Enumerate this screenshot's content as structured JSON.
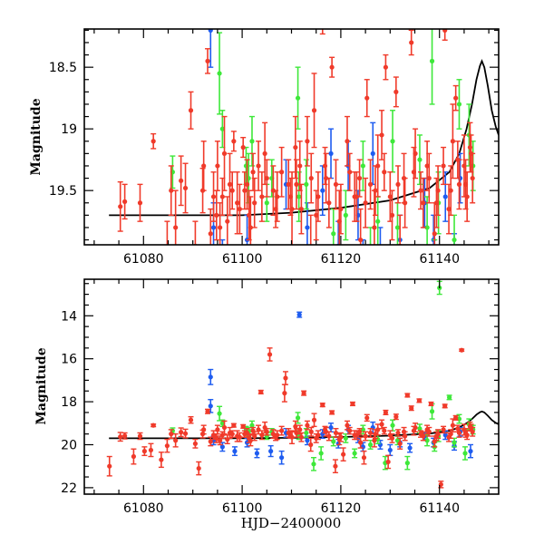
{
  "chart_data": [
    {
      "type": "scatter",
      "panel": "top",
      "title": "",
      "xlabel": "",
      "ylabel": "Magnitude",
      "xlim": [
        61068,
        61152
      ],
      "ylim": [
        18.19,
        19.94
      ],
      "y_inverted": true,
      "grid": false,
      "xticks": [
        61080,
        61100,
        61120,
        61140
      ],
      "xtick_labels": [
        "61080",
        "61100",
        "61120",
        "61140"
      ],
      "xminor_step": 5,
      "yticks": [
        18.5,
        19,
        19.5
      ],
      "ytick_labels": [
        "18.5",
        "19",
        "19.5"
      ],
      "yminor_step": 0.1
    },
    {
      "type": "scatter",
      "panel": "bottom",
      "title": "",
      "xlabel": "HJD−2400000",
      "ylabel": "Magnitude",
      "xlim": [
        61068,
        61152
      ],
      "ylim": [
        12.3,
        22.3
      ],
      "y_inverted": true,
      "grid": false,
      "xticks": [
        61080,
        61100,
        61120,
        61140
      ],
      "xtick_labels": [
        "61080",
        "61100",
        "61120",
        "61140"
      ],
      "xminor_step": 5,
      "yticks": [
        14,
        16,
        18,
        20,
        22
      ],
      "ytick_labels": [
        "14",
        "16",
        "18",
        "20",
        "22"
      ],
      "yminor_step": 0.5
    }
  ],
  "series": [
    {
      "name": "red",
      "color": "#f03a2a",
      "points": [
        [
          61073.1,
          21.0,
          0.45
        ],
        [
          61075.3,
          19.63,
          0.2
        ],
        [
          61076.2,
          19.59,
          0.14
        ],
        [
          61078.0,
          20.55,
          0.35
        ],
        [
          61079.3,
          19.6,
          0.15
        ],
        [
          61080.2,
          20.3,
          0.2
        ],
        [
          61081.5,
          20.25,
          0.3
        ],
        [
          61082.0,
          19.1,
          0.06
        ],
        [
          61083.6,
          20.7,
          0.35
        ],
        [
          61084.8,
          20.05,
          0.3
        ],
        [
          61085.6,
          19.5,
          0.2
        ],
        [
          61086.5,
          19.8,
          0.3
        ],
        [
          61087.6,
          19.42,
          0.2
        ],
        [
          61088.5,
          19.48,
          0.2
        ],
        [
          61089.6,
          18.85,
          0.15
        ],
        [
          61090.5,
          19.95,
          0.2
        ],
        [
          61091.2,
          21.1,
          0.3
        ],
        [
          61092.0,
          19.5,
          0.18
        ],
        [
          61092.2,
          19.3,
          0.2
        ],
        [
          61093.0,
          18.45,
          0.1
        ],
        [
          61094.2,
          19.55,
          0.2
        ],
        [
          61095.0,
          19.3,
          0.2
        ],
        [
          61095.5,
          19.8,
          0.2
        ],
        [
          61096.4,
          19.2,
          0.3
        ],
        [
          61097.5,
          19.45,
          0.25
        ],
        [
          61098.3,
          19.1,
          0.08
        ],
        [
          61099.0,
          19.6,
          0.25
        ],
        [
          61100.2,
          19.15,
          0.08
        ],
        [
          61101.0,
          19.45,
          0.2
        ],
        [
          61101.7,
          19.8,
          0.25
        ],
        [
          61102.5,
          19.6,
          0.2
        ],
        [
          61103.3,
          19.3,
          0.2
        ],
        [
          61103.8,
          17.55,
          0.08
        ],
        [
          61104.6,
          19.2,
          0.25
        ],
        [
          61105.6,
          15.8,
          0.3
        ],
        [
          61106.3,
          19.5,
          0.2
        ],
        [
          61107.1,
          19.55,
          0.2
        ],
        [
          61108.6,
          17.6,
          0.4
        ],
        [
          61108.8,
          16.9,
          0.3
        ],
        [
          61109.4,
          19.45,
          0.2
        ],
        [
          61110.1,
          19.65,
          0.3
        ],
        [
          61110.8,
          19.15,
          0.25
        ],
        [
          61111.7,
          19.3,
          0.2
        ],
        [
          61112.5,
          17.6,
          0.1
        ],
        [
          61113.2,
          19.1,
          0.2
        ],
        [
          61113.9,
          20.0,
          0.3
        ],
        [
          61114.6,
          18.85,
          0.3
        ],
        [
          61115.4,
          19.55,
          0.2
        ],
        [
          61116.3,
          18.15,
          0.08
        ],
        [
          61117.0,
          19.4,
          0.2
        ],
        [
          61118.2,
          18.5,
          0.08
        ],
        [
          61118.9,
          21.0,
          0.3
        ],
        [
          61119.7,
          19.75,
          0.25
        ],
        [
          61120.5,
          20.45,
          0.3
        ],
        [
          61121.3,
          19.1,
          0.2
        ],
        [
          61122.4,
          18.1,
          0.08
        ],
        [
          61123.2,
          19.55,
          0.2
        ],
        [
          61124.0,
          19.9,
          0.25
        ],
        [
          61124.7,
          20.6,
          0.3
        ],
        [
          61125.3,
          18.75,
          0.15
        ],
        [
          61126.0,
          19.45,
          0.2
        ],
        [
          61126.8,
          19.8,
          0.3
        ],
        [
          61127.5,
          19.3,
          0.25
        ],
        [
          61128.3,
          19.05,
          0.2
        ],
        [
          61129.1,
          18.5,
          0.1
        ],
        [
          61129.6,
          20.8,
          0.3
        ],
        [
          61130.4,
          19.7,
          0.2
        ],
        [
          61131.2,
          18.7,
          0.12
        ],
        [
          61132.0,
          19.95,
          0.25
        ],
        [
          61132.8,
          19.4,
          0.2
        ],
        [
          61133.5,
          17.7,
          0.08
        ],
        [
          61134.3,
          18.3,
          0.1
        ],
        [
          61135.1,
          19.2,
          0.2
        ],
        [
          61135.9,
          17.95,
          0.08
        ],
        [
          61136.7,
          19.6,
          0.2
        ],
        [
          61137.5,
          19.3,
          0.2
        ],
        [
          61138.3,
          18.1,
          0.08
        ],
        [
          61139.0,
          19.85,
          0.25
        ],
        [
          61139.7,
          19.5,
          0.2
        ],
        [
          61140.3,
          21.85,
          0.15
        ],
        [
          61141.1,
          18.2,
          0.08
        ],
        [
          61141.9,
          19.65,
          0.2
        ],
        [
          61142.7,
          19.1,
          0.3
        ],
        [
          61143.3,
          18.75,
          0.1
        ],
        [
          61144.0,
          19.45,
          0.2
        ],
        [
          61144.5,
          15.6,
          0.05
        ],
        [
          61145.0,
          19.3,
          0.25
        ],
        [
          61145.6,
          19.55,
          0.2
        ],
        [
          61146.2,
          19.15,
          0.2
        ],
        [
          61146.7,
          19.4,
          0.2
        ],
        [
          61100.5,
          19.5,
          0.15
        ],
        [
          61101.4,
          19.7,
          0.2
        ],
        [
          61102.2,
          19.35,
          0.15
        ],
        [
          61104.0,
          19.55,
          0.2
        ],
        [
          61105.0,
          19.4,
          0.15
        ],
        [
          61106.8,
          19.65,
          0.15
        ],
        [
          61108.0,
          19.35,
          0.2
        ],
        [
          61109.8,
          19.55,
          0.15
        ],
        [
          61111.0,
          19.45,
          0.2
        ],
        [
          61112.0,
          19.65,
          0.2
        ],
        [
          61114.0,
          19.4,
          0.2
        ],
        [
          61115.0,
          19.7,
          0.2
        ],
        [
          61116.8,
          19.3,
          0.15
        ],
        [
          61117.6,
          19.6,
          0.2
        ],
        [
          61119.0,
          19.45,
          0.2
        ],
        [
          61120.0,
          19.65,
          0.2
        ],
        [
          61121.8,
          19.35,
          0.15
        ],
        [
          61122.8,
          19.55,
          0.2
        ],
        [
          61123.8,
          19.4,
          0.15
        ],
        [
          61125.0,
          19.6,
          0.2
        ],
        [
          61127.0,
          19.5,
          0.2
        ],
        [
          61128.8,
          19.35,
          0.15
        ],
        [
          61130.0,
          19.55,
          0.2
        ],
        [
          61131.6,
          19.45,
          0.15
        ],
        [
          61133.0,
          19.6,
          0.2
        ],
        [
          61134.8,
          19.35,
          0.2
        ],
        [
          61136.2,
          19.5,
          0.15
        ],
        [
          61137.9,
          19.4,
          0.2
        ],
        [
          61139.4,
          19.6,
          0.2
        ],
        [
          61140.8,
          19.3,
          0.15
        ],
        [
          61142.3,
          19.5,
          0.2
        ],
        [
          61143.7,
          19.25,
          0.15
        ],
        [
          61145.3,
          19.45,
          0.2
        ],
        [
          61146.4,
          19.2,
          0.15
        ],
        [
          61094.8,
          19.7,
          0.2
        ],
        [
          61096.0,
          19.55,
          0.15
        ],
        [
          61097.0,
          19.75,
          0.2
        ],
        [
          61098.0,
          19.5,
          0.15
        ],
        [
          61099.5,
          19.65,
          0.2
        ],
        [
          61093.6,
          19.85,
          0.2
        ]
      ]
    },
    {
      "name": "green",
      "color": "#3ee83a",
      "points": [
        [
          61085.9,
          19.35,
          0.13
        ],
        [
          61095.4,
          18.55,
          0.33
        ],
        [
          61096.0,
          19.0,
          0.15
        ],
        [
          61100.8,
          19.3,
          0.15
        ],
        [
          61101.3,
          19.4,
          0.2
        ],
        [
          61102.0,
          19.1,
          0.2
        ],
        [
          61105.0,
          19.6,
          0.15
        ],
        [
          61106.0,
          19.4,
          0.15
        ],
        [
          61111.3,
          18.75,
          0.25
        ],
        [
          61111.5,
          19.55,
          0.2
        ],
        [
          61113.0,
          19.45,
          0.2
        ],
        [
          61114.5,
          20.9,
          0.3
        ],
        [
          61116.0,
          20.4,
          0.3
        ],
        [
          61118.5,
          19.85,
          0.2
        ],
        [
          61121.0,
          19.7,
          0.2
        ],
        [
          61122.8,
          20.4,
          0.2
        ],
        [
          61124.5,
          19.3,
          0.2
        ],
        [
          61126.0,
          20.0,
          0.2
        ],
        [
          61127.5,
          19.75,
          0.2
        ],
        [
          61129.0,
          20.85,
          0.3
        ],
        [
          61130.5,
          19.1,
          0.25
        ],
        [
          61131.5,
          19.8,
          0.2
        ],
        [
          61133.5,
          20.85,
          0.3
        ],
        [
          61136.0,
          19.25,
          0.2
        ],
        [
          61137.5,
          19.8,
          0.25
        ],
        [
          61138.5,
          18.45,
          0.35
        ],
        [
          61139.0,
          20.1,
          0.2
        ],
        [
          61139.8,
          19.6,
          0.25
        ],
        [
          61140.0,
          12.7,
          0.3
        ],
        [
          61142.0,
          17.8,
          0.1
        ],
        [
          61143.0,
          19.9,
          0.2
        ],
        [
          61144.0,
          18.8,
          0.2
        ],
        [
          61145.2,
          20.4,
          0.3
        ],
        [
          61146.0,
          19.05,
          0.25
        ],
        [
          61146.8,
          19.3,
          0.2
        ]
      ]
    },
    {
      "name": "blue",
      "color": "#1e5cf0",
      "points": [
        [
          61093.6,
          16.85,
          0.35
        ],
        [
          61093.6,
          18.2,
          0.3
        ],
        [
          61094.2,
          19.8,
          0.2
        ],
        [
          61096.0,
          20.1,
          0.2
        ],
        [
          61098.5,
          20.3,
          0.2
        ],
        [
          61101.0,
          19.9,
          0.2
        ],
        [
          61103.0,
          20.4,
          0.2
        ],
        [
          61105.8,
          20.3,
          0.25
        ],
        [
          61108.0,
          20.6,
          0.3
        ],
        [
          61108.9,
          19.45,
          0.2
        ],
        [
          61111.6,
          13.95,
          0.12
        ],
        [
          61113.2,
          19.8,
          0.2
        ],
        [
          61116.3,
          19.5,
          0.2
        ],
        [
          61118.0,
          19.2,
          0.2
        ],
        [
          61119.5,
          19.95,
          0.2
        ],
        [
          61121.5,
          19.3,
          0.2
        ],
        [
          61123.5,
          19.7,
          0.2
        ],
        [
          61124.5,
          20.1,
          0.2
        ],
        [
          61126.5,
          19.2,
          0.25
        ],
        [
          61128.0,
          20.0,
          0.2
        ],
        [
          61130.0,
          20.25,
          0.25
        ],
        [
          61132.0,
          19.9,
          0.2
        ],
        [
          61134.0,
          20.15,
          0.2
        ],
        [
          61137.0,
          19.6,
          0.2
        ],
        [
          61138.8,
          19.9,
          0.2
        ],
        [
          61141.2,
          19.55,
          0.2
        ],
        [
          61143.0,
          20.05,
          0.2
        ],
        [
          61144.2,
          19.4,
          0.2
        ],
        [
          61146.3,
          20.3,
          0.3
        ]
      ]
    }
  ],
  "model_curve": {
    "name": "model",
    "color": "#000000",
    "points": [
      [
        61073,
        19.7
      ],
      [
        61080,
        19.7
      ],
      [
        61090,
        19.7
      ],
      [
        61100,
        19.7
      ],
      [
        61110,
        19.68
      ],
      [
        61120,
        19.64
      ],
      [
        61130,
        19.58
      ],
      [
        61138,
        19.48
      ],
      [
        61142,
        19.35
      ],
      [
        61144,
        19.2
      ],
      [
        61145.5,
        19.0
      ],
      [
        61146.6,
        18.8
      ],
      [
        61147.5,
        18.6
      ],
      [
        61148.2,
        18.49
      ],
      [
        61148.6,
        18.45
      ],
      [
        61149.1,
        18.5
      ],
      [
        61149.8,
        18.65
      ],
      [
        61150.6,
        18.85
      ],
      [
        61151.4,
        18.98
      ],
      [
        61152,
        19.05
      ]
    ]
  }
}
